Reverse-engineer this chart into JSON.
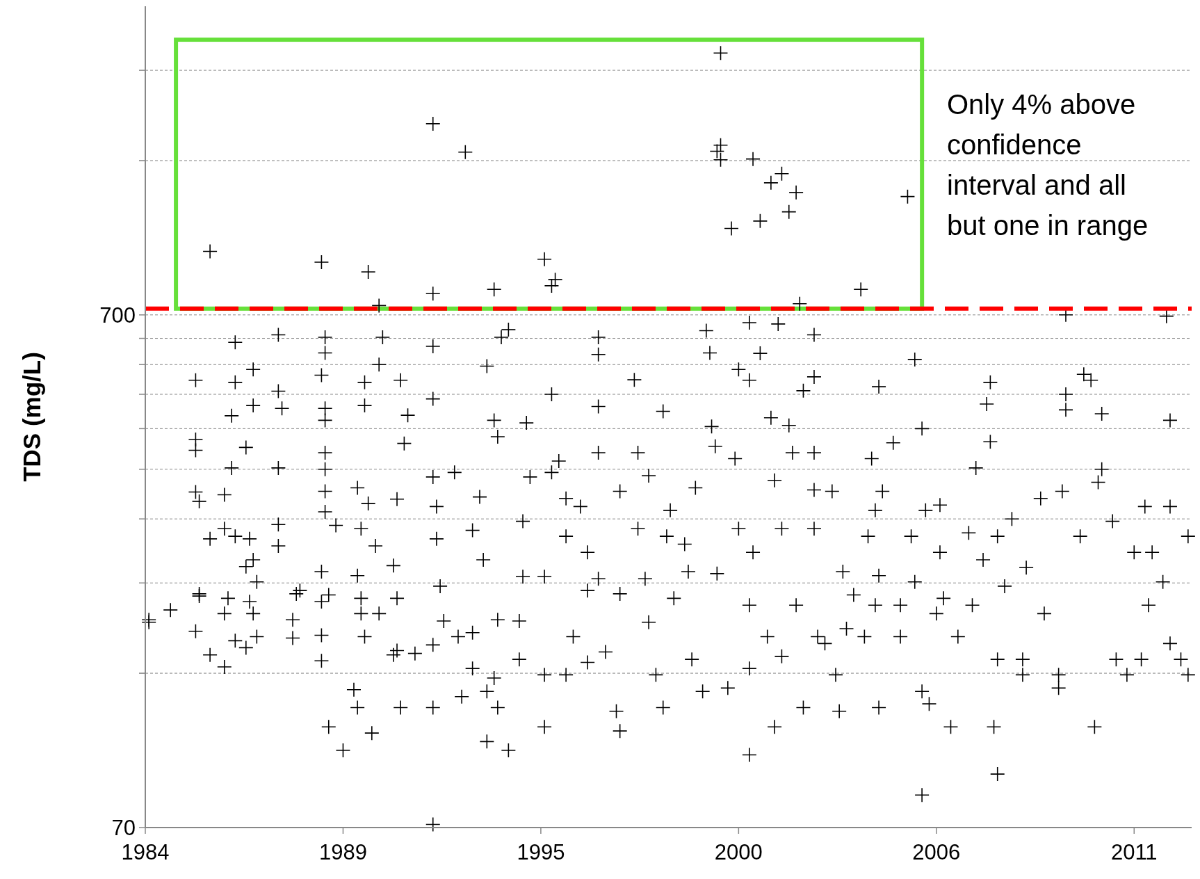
{
  "chart_data": {
    "type": "scatter",
    "ylabel": "TDS (mg/L)",
    "log": "y",
    "grid": "y",
    "marker": "cross",
    "annotations": [
      "Only 4% above confidence interval and all but one in range"
    ],
    "xlim": [
      1984,
      2013.1
    ],
    "xticks": [
      {
        "value": 1984,
        "label": "1984"
      },
      {
        "value": 1989.5,
        "label": "1989"
      },
      {
        "value": 1995,
        "label": "1995"
      },
      {
        "value": 2000.5,
        "label": "2000"
      },
      {
        "value": 2006,
        "label": "2006"
      },
      {
        "value": 2011.5,
        "label": "2011"
      }
    ],
    "ylim": [
      70,
      2800
    ],
    "yticks": [
      70,
      {
        "value": 140,
        "label": null
      },
      {
        "value": 210,
        "label": null
      },
      {
        "value": 280,
        "label": null
      },
      {
        "value": 350,
        "label": null
      },
      {
        "value": 420,
        "label": null
      },
      {
        "value": 490,
        "label": null
      },
      {
        "value": 560,
        "label": null
      },
      {
        "value": 630,
        "label": null
      },
      700,
      {
        "value": 1400,
        "label": null
      },
      {
        "value": 2100,
        "label": null
      }
    ],
    "ref_lines": [
      {
        "axis": "y",
        "value": 720,
        "color": "#ff0000",
        "line_style": "dashed"
      }
    ],
    "series": [
      {
        "color": "#000000",
        "x": [
          1985.8,
          1988.9,
          1990.2,
          1992.0,
          1992.9,
          1992.0,
          1993.7,
          1990.5,
          1995.1,
          1995.3,
          1995.4,
          2000.0,
          1999.9,
          2000.0,
          2000.0,
          2000.9,
          2001.4,
          2001.7,
          2002.1,
          2001.9,
          2001.1,
          2000.3,
          2002.2,
          2003.9,
          2005.2,
          1984.1,
          1984.1,
          1984.7,
          1985.4,
          1985.4,
          1985.4,
          1985.4,
          1985.5,
          1985.8,
          1985.5,
          1985.5,
          1985.4,
          1985.8,
          1986.2,
          1986.2,
          1986.2,
          1986.2,
          1986.3,
          1986.5,
          1986.5,
          1986.4,
          1986.4,
          1986.5,
          1986.9,
          1986.5,
          1986.8,
          1986.8,
          1987.0,
          1986.8,
          1987.1,
          1987.0,
          1987.0,
          1986.9,
          1987.0,
          1987.1,
          1987.7,
          1987.7,
          1987.8,
          1987.7,
          1987.7,
          1987.7,
          1988.2,
          1988.1,
          1988.1,
          1988.3,
          1989.0,
          1989.0,
          1988.9,
          1989.0,
          1989.0,
          1989.0,
          1989.0,
          1989.0,
          1989.0,
          1988.9,
          1988.9,
          1989.1,
          1988.9,
          1988.9,
          1989.1,
          1989.3,
          1989.5,
          1989.9,
          1990.1,
          1990.1,
          1990.2,
          1990.0,
          1989.9,
          1990.0,
          1990.0,
          1990.1,
          1989.8,
          1989.9,
          1990.3,
          1990.5,
          1990.4,
          1990.9,
          1990.6,
          1990.5,
          1991.0,
          1991.0,
          1991.0,
          1990.9,
          1991.1,
          1991.2,
          1991.3,
          1991.1,
          1991.5,
          1992.0,
          1992.0,
          1992.0,
          1992.1,
          1992.1,
          1992.2,
          1992.3,
          1992.0,
          1992.0,
          1992.0,
          1992.6,
          1992.7,
          1992.8,
          1993.1,
          1993.1,
          1993.1,
          1993.3,
          1993.5,
          1993.4,
          1993.5,
          1993.5,
          1993.7,
          1993.8,
          1993.7,
          1993.8,
          1993.8,
          1993.9,
          1994.1,
          1994.1,
          1994.5,
          1994.6,
          1994.5,
          1994.4,
          1994.4,
          1994.7,
          1995.1,
          1995.1,
          1995.1,
          1995.3,
          1995.3,
          1995.5,
          1995.7,
          1995.7,
          1995.7,
          1995.9,
          1996.1,
          1996.3,
          1996.3,
          1996.3,
          1996.6,
          1996.6,
          1996.6,
          1996.6,
          1996.6,
          1996.8,
          1997.1,
          1997.2,
          1997.2,
          1997.2,
          1997.6,
          1997.7,
          1997.7,
          1997.9,
          1998.0,
          1998.0,
          1998.2,
          1998.4,
          1998.4,
          1998.6,
          1998.5,
          1998.7,
          1999.0,
          1999.1,
          1999.3,
          1999.2,
          1999.6,
          1999.7,
          1999.75,
          1999.85,
          1999.5,
          1999.9,
          2000.2,
          2000.4,
          2000.5,
          2000.5,
          2000.8,
          2000.8,
          2000.8,
          2000.8,
          2000.8,
          2000.9,
          2001.1,
          2001.3,
          2001.4,
          2001.5,
          2001.5,
          2001.6,
          2001.7,
          2001.7,
          2001.9,
          2002.0,
          2002.1,
          2002.3,
          2002.3,
          2002.6,
          2002.6,
          2002.6,
          2002.6,
          2002.6,
          2002.9,
          2003.1,
          2003.2,
          2003.3,
          2003.4,
          2003.7,
          2004.0,
          2004.1,
          2004.3,
          2004.2,
          2004.4,
          2004.5,
          2004.4,
          2004.4,
          2004.8,
          2005.0,
          2005.0,
          2005.3,
          2005.4,
          2005.4,
          2005.6,
          2005.7,
          2005.6,
          2005.8,
          2005.6,
          2006.1,
          2006.1,
          2006.2,
          2006.4,
          2006.9,
          2007.1,
          2007.3,
          2007.4,
          2007.5,
          2007.5,
          2007.6,
          2007.7,
          2007.7,
          2007.7,
          2007.9,
          2008.1,
          2008.4,
          2008.4,
          2008.5,
          2008.9,
          2009.0,
          2009.6,
          2009.6,
          2009.5,
          2009.4,
          2009.4,
          2009.6,
          2010.0,
          2010.1,
          2010.3,
          2010.4,
          2010.5,
          2010.6,
          2010.6,
          2010.9,
          2011.0,
          2011.3,
          2011.8,
          2011.5,
          2011.7,
          2011.9,
          2012.0,
          2012.4,
          2012.5,
          2012.5,
          2012.5,
          2012.3,
          2013.0,
          2013.0,
          2012.8,
          2002.7,
          2003.5,
          2004.3,
          2006.0,
          2006.6,
          2007.0
        ],
        "values": [
          931,
          887,
          849,
          1652,
          1454,
          770,
          785,
          730,
          899,
          798,
          820,
          2270,
          1460,
          1500,
          1405,
          1410,
          1267,
          1320,
          1213,
          1112,
          1067,
          1032,
          736,
          785,
          1191,
          176,
          178,
          186,
          522,
          400,
          381,
          316,
          303,
          256,
          200,
          198,
          169,
          152,
          144,
          312,
          268,
          183,
          196,
          619,
          517,
          445,
          352,
          259,
          256,
          162,
          157,
          386,
          466,
          226,
          211,
          183,
          233,
          193,
          548,
          165,
          640,
          497,
          460,
          352,
          273,
          248,
          200,
          178,
          164,
          203,
          633,
          590,
          534,
          460,
          436,
          377,
          350,
          317,
          289,
          221,
          193,
          199,
          166,
          148,
          110,
          272,
          99,
          322,
          517,
          466,
          300,
          268,
          217,
          196,
          183,
          165,
          130,
          120,
          107,
          183,
          248,
          227,
          633,
          560,
          306,
          196,
          155,
          152,
          522,
          393,
          446,
          120,
          153,
          608,
          480,
          338,
          296,
          256,
          207,
          177,
          159,
          120,
          71,
          345,
          165,
          126,
          266,
          168,
          143,
          309,
          556,
          233,
          129,
          103,
          436,
          405,
          137,
          178,
          120,
          633,
          99,
          655,
          277,
          431,
          216,
          177,
          149,
          338,
          139,
          216,
          110,
          490,
          345,
          363,
          307,
          259,
          139,
          165,
          296,
          241,
          203,
          147,
          633,
          586,
          464,
          377,
          214,
          154,
          118,
          108,
          317,
          200,
          523,
          377,
          268,
          214,
          340,
          176,
          139,
          454,
          120,
          291,
          259,
          196,
          250,
          221,
          322,
          149,
          652,
          590,
          424,
          388,
          129,
          219,
          131,
          367,
          548,
          268,
          676,
          522,
          190,
          97,
          143,
          241,
          589,
          165,
          441,
          333,
          110,
          672,
          268,
          151,
          426,
          377,
          190,
          498,
          120,
          640,
          530,
          377,
          319,
          268,
          160,
          317,
          139,
          118,
          221,
          199,
          165,
          259,
          291,
          367,
          507,
          317,
          217,
          120,
          394,
          165,
          190,
          259,
          573,
          211,
          420,
          291,
          129,
          122,
          81,
          298,
          241,
          196,
          110,
          263,
          352,
          233,
          469,
          517,
          396,
          110,
          89,
          149,
          259,
          207,
          280,
          149,
          139,
          225,
          307,
          183,
          490,
          457,
          317,
          139,
          131,
          700,
          259,
          536,
          522,
          110,
          330,
          449,
          350,
          277,
          149,
          139,
          296,
          241,
          149,
          190,
          241,
          696,
          436,
          296,
          160,
          211,
          259,
          139,
          149,
          165,
          171,
          190,
          183,
          165,
          190
        ]
      }
    ]
  }
}
